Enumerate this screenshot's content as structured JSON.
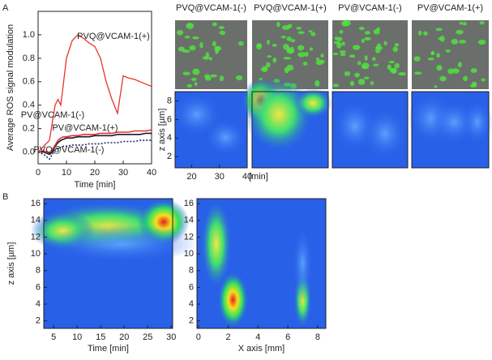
{
  "chart_data": [
    {
      "type": "line",
      "label": "A",
      "ylabel": "Average ROS signal modulation",
      "xlabel": "Time [min]",
      "xlim": [
        0,
        40
      ],
      "ylim": [
        -0.1,
        1.2
      ],
      "xticks": [
        0,
        10,
        20,
        30,
        40
      ],
      "yticks": [
        {
          "value": 0,
          "label": "0.0"
        },
        {
          "value": 0.2,
          "label": "0.2"
        },
        {
          "value": 0.4,
          "label": "0.4"
        },
        {
          "value": 0.6,
          "label": "0.6"
        },
        {
          "value": 0.8,
          "label": "0.8"
        },
        {
          "value": 1,
          "label": "1.0"
        }
      ],
      "x": [
        0,
        2,
        4,
        5,
        6,
        7,
        8,
        9,
        10,
        12,
        14,
        16,
        18,
        20,
        22,
        24,
        26,
        28,
        30,
        32,
        34,
        36,
        38,
        40
      ],
      "series": [
        {
          "name": "PVQ@VCAM-1(+)",
          "color": "#e8322a",
          "dash": "solid",
          "values": [
            0,
            0.05,
            0.1,
            0.25,
            0.4,
            0.45,
            0.4,
            0.6,
            0.8,
            0.95,
            1.0,
            0.97,
            0.93,
            0.9,
            0.8,
            0.6,
            0.45,
            0.33,
            0.65,
            0.63,
            0.62,
            0.6,
            0.58,
            0.56
          ]
        },
        {
          "name": "PV@VCAM-1(-)",
          "color": "#1a1a2e",
          "dash": "solid",
          "values": [
            0,
            0,
            -0.02,
            0,
            0.05,
            0.08,
            0.1,
            0.11,
            0.12,
            0.12,
            0.13,
            0.13,
            0.13,
            0.14,
            0.14,
            0.14,
            0.14,
            0.15,
            0.15,
            0.15,
            0.15,
            0.15,
            0.16,
            0.16
          ]
        },
        {
          "name": "PV@VCAM-1(+)",
          "color": "#e8322a",
          "dash": "solid",
          "values": [
            0,
            0.01,
            -0.01,
            0.02,
            0.06,
            0.1,
            0.12,
            0.13,
            0.13,
            0.14,
            0.14,
            0.15,
            0.15,
            0.15,
            0.16,
            0.16,
            0.16,
            0.17,
            0.17,
            0.17,
            0.18,
            0.18,
            0.18,
            0.19
          ]
        },
        {
          "name": "PVQ@VCAM-1(-)",
          "color": "#1a2a6e",
          "dash": "dotted",
          "values": [
            0,
            -0.02,
            -0.06,
            -0.02,
            0.02,
            0.03,
            0.04,
            0.05,
            0.05,
            0.06,
            0.06,
            0.06,
            0.07,
            0.07,
            0.07,
            0.08,
            0.08,
            0.08,
            0.09,
            0.09,
            0.09,
            0.1,
            0.1,
            0.1
          ]
        }
      ]
    },
    {
      "type": "heatmap",
      "ylabel": "z axis [µm]",
      "xunit": "[min]",
      "xlim": [
        14,
        40
      ],
      "ylim": [
        0.8,
        9
      ],
      "xticks": [
        20,
        30,
        40
      ],
      "yticks": [
        2,
        4,
        6,
        8
      ],
      "panels": [
        "PVQ@VCAM-1(-)",
        "PVQ@VCAM-1(+)",
        "PV@VCAM-1(-)",
        "PV@VCAM-1(+)"
      ]
    },
    {
      "type": "heatmap",
      "label": "B",
      "ylabel": "z axis [µm]",
      "xlabel": "Time [min]",
      "xlim": [
        2.9,
        30.3
      ],
      "ylim": [
        1.1,
        16.6
      ],
      "xticks": [
        5,
        10,
        15,
        20,
        25,
        30
      ],
      "yticks": [
        2,
        4,
        6,
        8,
        10,
        12,
        14,
        16
      ]
    },
    {
      "type": "heatmap",
      "xlabel": "X axis [mm]",
      "xlim": [
        -0.1,
        8.55
      ],
      "ylim": [
        1.1,
        16.6
      ],
      "xticks": [
        0,
        2,
        4,
        6,
        8
      ],
      "yticks": [
        2,
        4,
        6,
        8,
        10,
        12,
        14,
        16
      ]
    }
  ]
}
